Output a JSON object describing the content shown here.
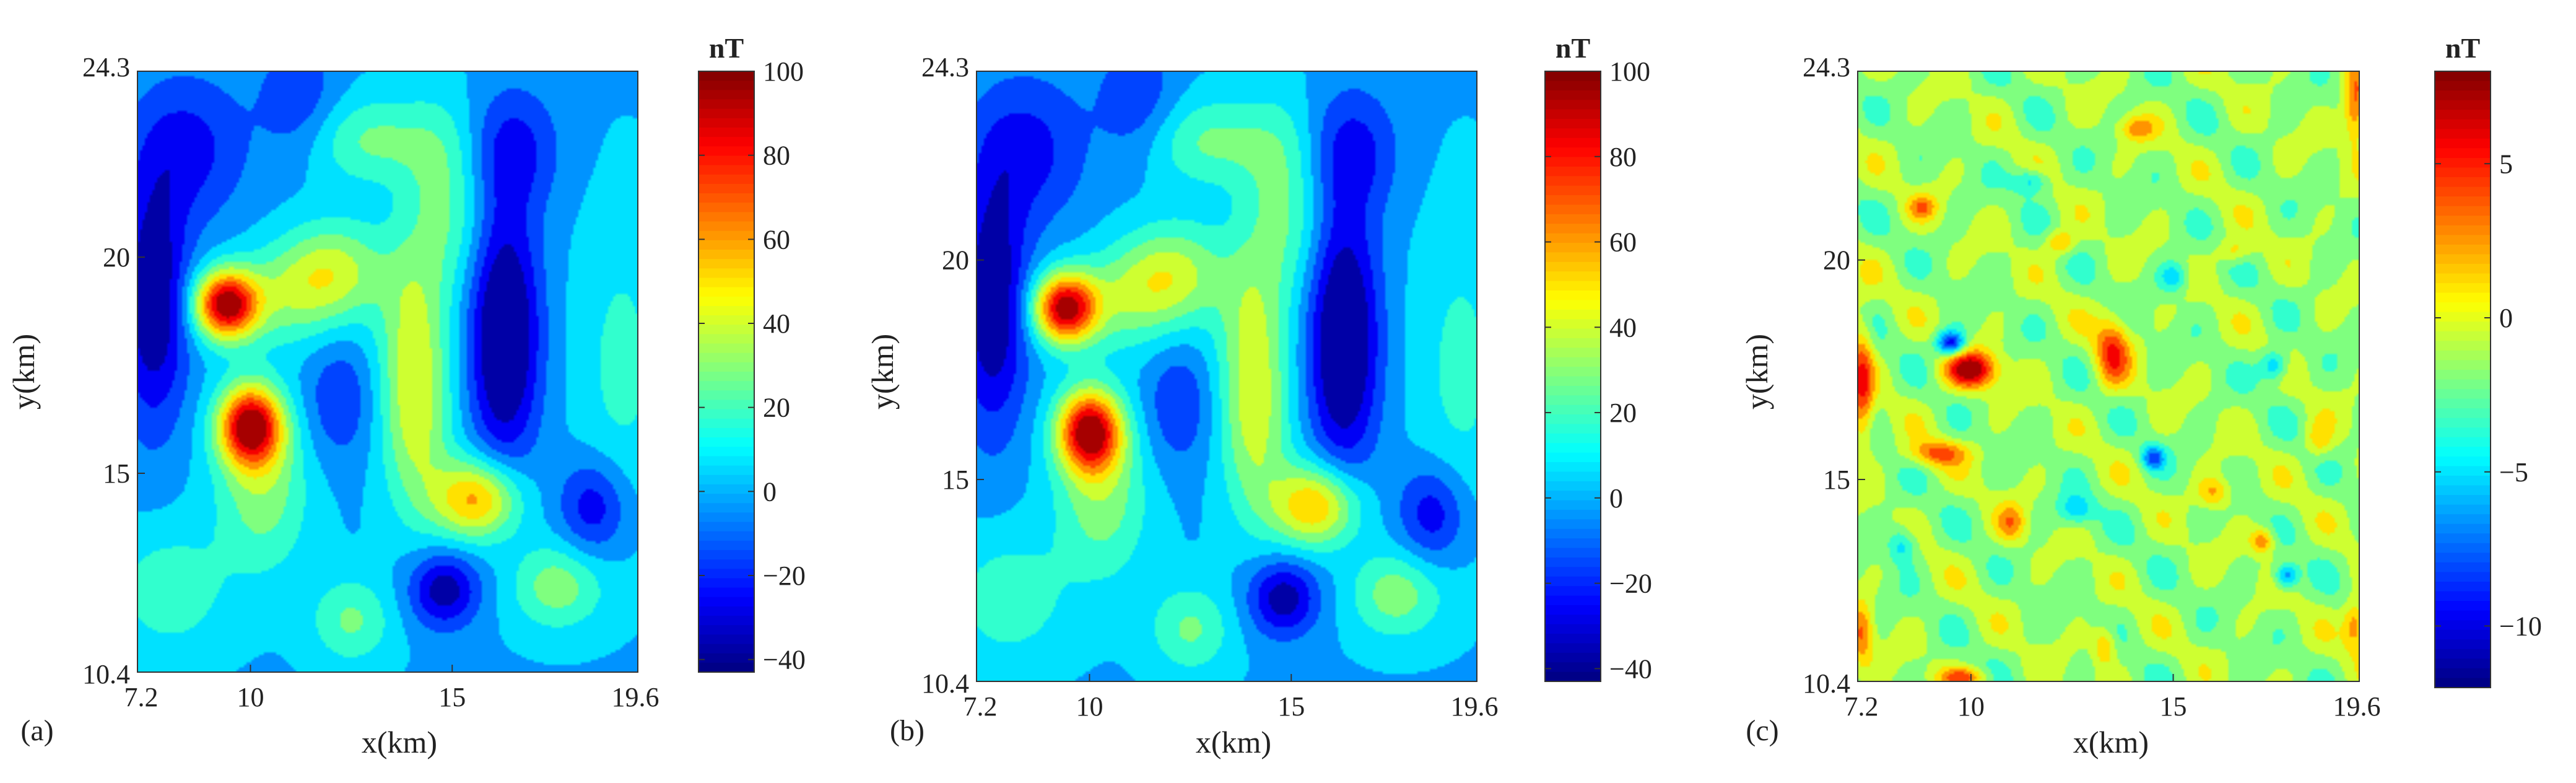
{
  "figure": {
    "colormap": [
      "#00007f",
      "#0000ff",
      "#007fff",
      "#00ffff",
      "#7fff7f",
      "#ffff00",
      "#ff7f00",
      "#ff0000",
      "#7f0000"
    ],
    "panels": [
      {
        "label": "(a)",
        "xlabel": "x(km)",
        "ylabel": "y(km)",
        "xticks": [
          "7.2",
          "10",
          "15",
          "19.6"
        ],
        "yticks": [
          "24.3",
          "20",
          "15",
          "10.4"
        ],
        "colorbar_unit": "nT",
        "colorbar_ticks": [
          "100",
          "80",
          "60",
          "40",
          "20",
          "0",
          "−20",
          "−40"
        ]
      },
      {
        "label": "(b)",
        "xlabel": "x(km)",
        "ylabel": "y(km)",
        "xticks": [
          "7.2",
          "10",
          "15",
          "19.6"
        ],
        "yticks": [
          "24.3",
          "20",
          "15",
          "10.4"
        ],
        "colorbar_unit": "nT",
        "colorbar_ticks": [
          "100",
          "80",
          "60",
          "40",
          "20",
          "0",
          "−20",
          "−40"
        ]
      },
      {
        "label": "(c)",
        "xlabel": "x(km)",
        "ylabel": "y(km)",
        "xticks": [
          "7.2",
          "10",
          "15",
          "19.6"
        ],
        "yticks": [
          "24.3",
          "20",
          "15",
          "10.4"
        ],
        "colorbar_unit": "nT",
        "colorbar_ticks": [
          "5",
          "0",
          "−5",
          "−10"
        ]
      }
    ]
  },
  "chart_data": [
    {
      "type": "heatmap",
      "title": "",
      "xlabel": "x(km)",
      "ylabel": "y(km)",
      "xlim": [
        7.2,
        19.6
      ],
      "ylim": [
        10.4,
        24.3
      ],
      "colorbar": {
        "label": "nT",
        "range": [
          -43,
          100
        ],
        "ticks": [
          100,
          80,
          60,
          40,
          20,
          0,
          -20,
          -40
        ]
      },
      "anomalies": [
        {
          "x": 9.4,
          "y": 18.9,
          "value": 95,
          "sx": 0.55,
          "sy": 0.55
        },
        {
          "x": 10.0,
          "y": 16.1,
          "value": 95,
          "sx": 0.55,
          "sy": 0.65
        },
        {
          "x": 10.3,
          "y": 14.6,
          "value": 30,
          "sx": 0.8,
          "sy": 1.3
        },
        {
          "x": 12.1,
          "y": 19.7,
          "value": 35,
          "sx": 0.9,
          "sy": 0.8
        },
        {
          "x": 10.9,
          "y": 19.1,
          "value": 25,
          "sx": 1.0,
          "sy": 0.8
        },
        {
          "x": 13.0,
          "y": 22.7,
          "value": 25,
          "sx": 1.2,
          "sy": 0.7
        },
        {
          "x": 14.8,
          "y": 21.3,
          "value": 25,
          "sx": 0.7,
          "sy": 1.5
        },
        {
          "x": 14.1,
          "y": 16.4,
          "value": 40,
          "sx": 0.6,
          "sy": 1.6
        },
        {
          "x": 15.6,
          "y": 14.4,
          "value": 60,
          "sx": 0.75,
          "sy": 0.65
        },
        {
          "x": 14.0,
          "y": 18.8,
          "value": 20,
          "sx": 0.6,
          "sy": 1.3
        },
        {
          "x": 17.6,
          "y": 12.4,
          "value": 30,
          "sx": 0.8,
          "sy": 0.7
        },
        {
          "x": 12.5,
          "y": 11.6,
          "value": 25,
          "sx": 0.7,
          "sy": 0.7
        },
        {
          "x": 8.0,
          "y": 12.3,
          "value": 20,
          "sx": 1.0,
          "sy": 1.0
        },
        {
          "x": 19.2,
          "y": 17.5,
          "value": 15,
          "sx": 0.8,
          "sy": 2.5
        },
        {
          "x": 16.3,
          "y": 18.2,
          "value": -55,
          "sx": 0.6,
          "sy": 2.0
        },
        {
          "x": 16.5,
          "y": 22.5,
          "value": -25,
          "sx": 0.8,
          "sy": 1.0
        },
        {
          "x": 7.6,
          "y": 19.0,
          "value": -45,
          "sx": 0.6,
          "sy": 2.0
        },
        {
          "x": 14.8,
          "y": 12.3,
          "value": -40,
          "sx": 0.6,
          "sy": 0.6
        },
        {
          "x": 11.2,
          "y": 23.6,
          "value": -20,
          "sx": 0.7,
          "sy": 1.0
        },
        {
          "x": 8.5,
          "y": 22.5,
          "value": -25,
          "sx": 1.0,
          "sy": 1.2
        },
        {
          "x": 18.5,
          "y": 14.2,
          "value": -30,
          "sx": 0.6,
          "sy": 0.8
        },
        {
          "x": 12.2,
          "y": 16.7,
          "value": -20,
          "sx": 0.6,
          "sy": 1.0
        }
      ]
    },
    {
      "type": "heatmap",
      "title": "",
      "xlabel": "x(km)",
      "ylabel": "y(km)",
      "xlim": [
        7.2,
        19.6
      ],
      "ylim": [
        10.4,
        24.3
      ],
      "colorbar": {
        "label": "nT",
        "range": [
          -43,
          100
        ],
        "ticks": [
          100,
          80,
          60,
          40,
          20,
          0,
          -20,
          -40
        ]
      },
      "anomalies": [
        {
          "x": 9.4,
          "y": 18.9,
          "value": 92,
          "sx": 0.55,
          "sy": 0.55
        },
        {
          "x": 10.0,
          "y": 16.1,
          "value": 93,
          "sx": 0.55,
          "sy": 0.65
        },
        {
          "x": 10.3,
          "y": 14.6,
          "value": 30,
          "sx": 0.8,
          "sy": 1.3
        },
        {
          "x": 12.1,
          "y": 19.7,
          "value": 35,
          "sx": 0.9,
          "sy": 0.8
        },
        {
          "x": 10.9,
          "y": 19.1,
          "value": 25,
          "sx": 1.0,
          "sy": 0.8
        },
        {
          "x": 13.0,
          "y": 22.7,
          "value": 25,
          "sx": 1.2,
          "sy": 0.7
        },
        {
          "x": 14.8,
          "y": 21.3,
          "value": 25,
          "sx": 0.7,
          "sy": 1.5
        },
        {
          "x": 14.1,
          "y": 16.4,
          "value": 38,
          "sx": 0.6,
          "sy": 1.6
        },
        {
          "x": 15.6,
          "y": 14.4,
          "value": 58,
          "sx": 0.75,
          "sy": 0.65
        },
        {
          "x": 14.0,
          "y": 18.8,
          "value": 20,
          "sx": 0.6,
          "sy": 1.3
        },
        {
          "x": 17.6,
          "y": 12.4,
          "value": 30,
          "sx": 0.8,
          "sy": 0.7
        },
        {
          "x": 12.5,
          "y": 11.6,
          "value": 25,
          "sx": 0.7,
          "sy": 0.7
        },
        {
          "x": 8.0,
          "y": 12.3,
          "value": 20,
          "sx": 1.0,
          "sy": 1.0
        },
        {
          "x": 19.2,
          "y": 17.5,
          "value": 15,
          "sx": 0.8,
          "sy": 2.5
        },
        {
          "x": 16.3,
          "y": 18.2,
          "value": -55,
          "sx": 0.6,
          "sy": 2.0
        },
        {
          "x": 16.5,
          "y": 22.5,
          "value": -25,
          "sx": 0.8,
          "sy": 1.0
        },
        {
          "x": 7.6,
          "y": 19.0,
          "value": -45,
          "sx": 0.6,
          "sy": 2.0
        },
        {
          "x": 14.8,
          "y": 12.3,
          "value": -40,
          "sx": 0.6,
          "sy": 0.6
        },
        {
          "x": 11.2,
          "y": 23.6,
          "value": -20,
          "sx": 0.7,
          "sy": 1.0
        },
        {
          "x": 8.5,
          "y": 22.5,
          "value": -25,
          "sx": 1.0,
          "sy": 1.2
        },
        {
          "x": 18.5,
          "y": 14.2,
          "value": -30,
          "sx": 0.6,
          "sy": 0.8
        },
        {
          "x": 12.2,
          "y": 16.7,
          "value": -20,
          "sx": 0.6,
          "sy": 1.0
        }
      ]
    },
    {
      "type": "heatmap",
      "title": "",
      "xlabel": "x(km)",
      "ylabel": "y(km)",
      "xlim": [
        7.2,
        19.6
      ],
      "ylim": [
        10.4,
        24.3
      ],
      "colorbar": {
        "label": "nT",
        "range": [
          -12,
          8
        ],
        "ticks": [
          5,
          0,
          -5,
          -10
        ]
      },
      "baseline": -1.5,
      "anomalies": [
        {
          "x": 10.0,
          "y": 17.5,
          "value": 9,
          "sx": 0.45,
          "sy": 0.3
        },
        {
          "x": 13.5,
          "y": 17.9,
          "value": 6,
          "sx": 0.3,
          "sy": 0.55
        },
        {
          "x": 9.5,
          "y": 18.1,
          "value": -9,
          "sx": 0.25,
          "sy": 0.2
        },
        {
          "x": 9.2,
          "y": 15.6,
          "value": 5,
          "sx": 0.5,
          "sy": 0.2
        },
        {
          "x": 16.0,
          "y": 14.7,
          "value": 4,
          "sx": 0.3,
          "sy": 0.25
        },
        {
          "x": 17.2,
          "y": 13.6,
          "value": 5,
          "sx": 0.2,
          "sy": 0.2
        },
        {
          "x": 7.3,
          "y": 17.2,
          "value": 6,
          "sx": 0.2,
          "sy": 1.0
        },
        {
          "x": 19.5,
          "y": 23.5,
          "value": 6,
          "sx": 0.2,
          "sy": 0.6
        },
        {
          "x": 19.5,
          "y": 11.7,
          "value": 5,
          "sx": 0.2,
          "sy": 0.4
        },
        {
          "x": 13.3,
          "y": 11.2,
          "value": 4,
          "sx": 0.2,
          "sy": 0.3
        },
        {
          "x": 11.0,
          "y": 14.0,
          "value": 4,
          "sx": 0.25,
          "sy": 0.3
        },
        {
          "x": 12.2,
          "y": 20.4,
          "value": 4,
          "sx": 0.25,
          "sy": 0.2
        },
        {
          "x": 14.1,
          "y": 23.0,
          "value": 4,
          "sx": 0.3,
          "sy": 0.2
        },
        {
          "x": 8.8,
          "y": 21.2,
          "value": 4,
          "sx": 0.25,
          "sy": 0.2
        },
        {
          "x": 16.5,
          "y": 20.2,
          "value": 3,
          "sx": 0.3,
          "sy": 0.2
        },
        {
          "x": 18.6,
          "y": 15.9,
          "value": 3,
          "sx": 0.25,
          "sy": 0.3
        },
        {
          "x": 9.8,
          "y": 10.5,
          "value": 5,
          "sx": 0.4,
          "sy": 0.15
        },
        {
          "x": 7.3,
          "y": 11.5,
          "value": 5,
          "sx": 0.2,
          "sy": 0.5
        },
        {
          "x": 14.5,
          "y": 15.5,
          "value": -6,
          "sx": 0.2,
          "sy": 0.2
        },
        {
          "x": 17.5,
          "y": 17.6,
          "value": -5,
          "sx": 0.25,
          "sy": 0.25
        },
        {
          "x": 17.8,
          "y": 12.8,
          "value": -6,
          "sx": 0.2,
          "sy": 0.2
        },
        {
          "x": 11.5,
          "y": 21.8,
          "value": -4,
          "sx": 0.3,
          "sy": 0.2
        },
        {
          "x": 15.0,
          "y": 19.6,
          "value": -4,
          "sx": 0.25,
          "sy": 0.25
        },
        {
          "x": 12.6,
          "y": 14.3,
          "value": -4,
          "sx": 0.3,
          "sy": 0.25
        },
        {
          "x": 8.3,
          "y": 13.5,
          "value": -4,
          "sx": 0.25,
          "sy": 0.3
        }
      ]
    }
  ]
}
